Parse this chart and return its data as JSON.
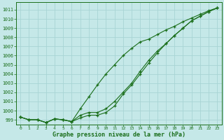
{
  "title": "Graphe pression niveau de la mer (hPa)",
  "bg_color": "#c5e8e8",
  "grid_color": "#a8d4d4",
  "line_color": "#1a6e1a",
  "xlim": [
    -0.5,
    23.5
  ],
  "ylim": [
    998.5,
    1011.8
  ],
  "xticks": [
    0,
    1,
    2,
    3,
    4,
    5,
    6,
    7,
    8,
    9,
    10,
    11,
    12,
    13,
    14,
    15,
    16,
    17,
    18,
    19,
    20,
    21,
    22,
    23
  ],
  "yticks": [
    999,
    1000,
    1001,
    1002,
    1003,
    1004,
    1005,
    1006,
    1007,
    1008,
    1009,
    1010,
    1011
  ],
  "series1": [
    999.3,
    999.0,
    999.0,
    998.7,
    999.1,
    999.0,
    998.8,
    1000.2,
    1001.5,
    1002.8,
    1004.0,
    1005.0,
    1006.0,
    1006.8,
    1007.5,
    1007.8,
    1008.3,
    1008.8,
    1009.2,
    1009.7,
    1010.1,
    1010.5,
    1010.9,
    1011.2
  ],
  "series2": [
    999.3,
    999.0,
    999.0,
    998.7,
    999.1,
    999.0,
    998.8,
    999.5,
    999.8,
    999.8,
    1000.2,
    1001.0,
    1002.0,
    1003.0,
    1004.3,
    1005.5,
    1006.5,
    1007.3,
    1008.2,
    1009.0,
    1009.8,
    1010.3,
    1010.8,
    1011.2
  ],
  "series3": [
    999.3,
    999.0,
    999.0,
    998.7,
    999.1,
    999.0,
    998.8,
    999.2,
    999.5,
    999.5,
    999.8,
    1000.5,
    1001.8,
    1002.8,
    1004.0,
    1005.2,
    1006.3,
    1007.3,
    1008.2,
    1009.0,
    1009.8,
    1010.3,
    1010.8,
    1011.2
  ],
  "figsize": [
    3.2,
    2.0
  ],
  "dpi": 100
}
